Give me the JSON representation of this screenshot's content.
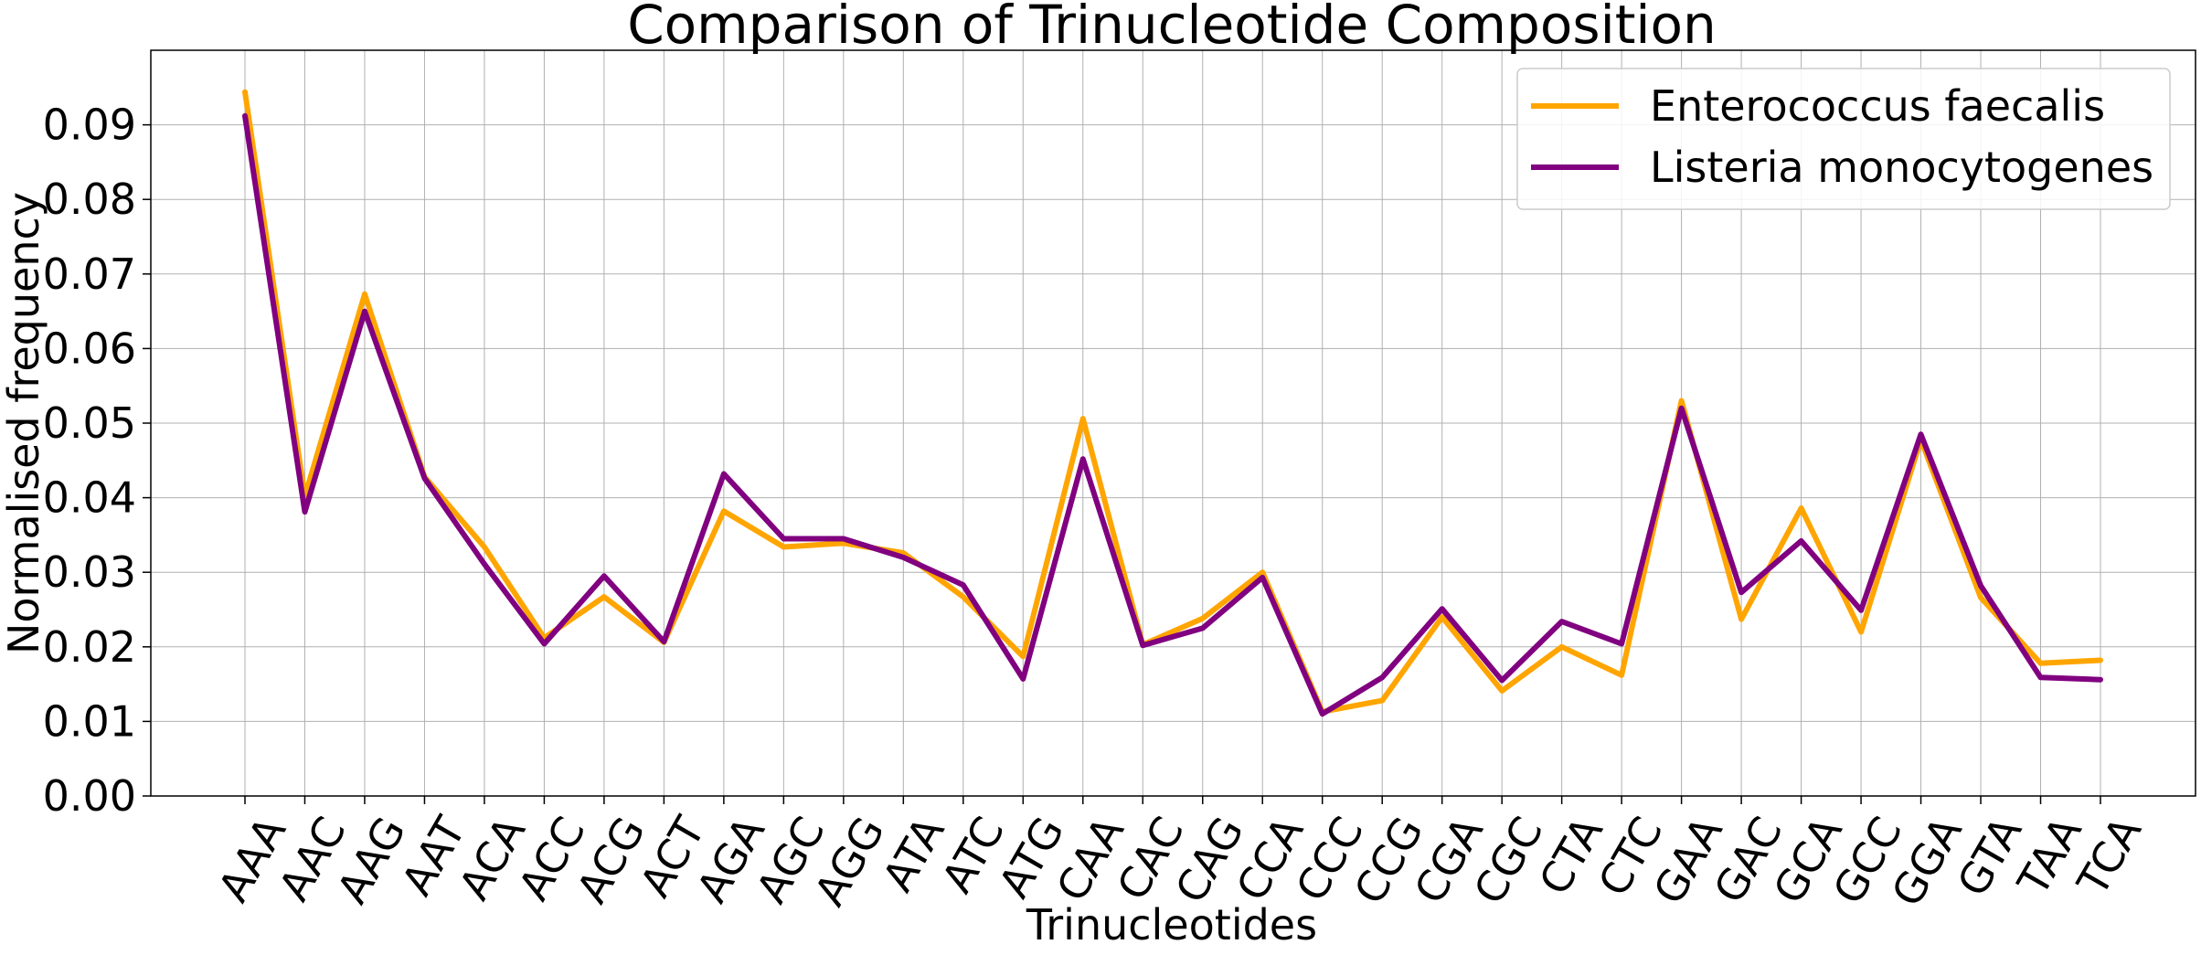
{
  "chart_data": {
    "type": "line",
    "title": "Comparison of Trinucleotide Composition",
    "xlabel": "Trinucleotides",
    "ylabel": "Normalised frequency",
    "ylim": [
      0.0,
      0.1
    ],
    "yticks": [
      "0.00",
      "0.01",
      "0.02",
      "0.03",
      "0.04",
      "0.05",
      "0.06",
      "0.07",
      "0.08",
      "0.09"
    ],
    "grid": true,
    "legend_position": "top-right",
    "categories": [
      "AAA",
      "AAC",
      "AAG",
      "AAT",
      "ACA",
      "ACC",
      "ACG",
      "ACT",
      "AGA",
      "AGC",
      "AGG",
      "ATA",
      "ATC",
      "ATG",
      "CAA",
      "CAC",
      "CAG",
      "CCA",
      "CCC",
      "CCG",
      "CGA",
      "CGC",
      "CTA",
      "CTC",
      "GAA",
      "GAC",
      "GCA",
      "GCC",
      "GGA",
      "GTA",
      "TAA",
      "TCA"
    ],
    "series": [
      {
        "name": "Enterococcus faecalis",
        "color": "#ffa500",
        "values": [
          0.0944,
          0.0402,
          0.0673,
          0.0428,
          0.0334,
          0.0212,
          0.0267,
          0.0206,
          0.0382,
          0.0334,
          0.0339,
          0.0326,
          0.0267,
          0.0187,
          0.0506,
          0.0203,
          0.0238,
          0.03,
          0.0113,
          0.0128,
          0.024,
          0.0141,
          0.02,
          0.0162,
          0.053,
          0.0237,
          0.0386,
          0.022,
          0.0478,
          0.0266,
          0.0178,
          0.0182
        ]
      },
      {
        "name": "Listeria monocytogenes",
        "color": "#800080",
        "values": [
          0.0912,
          0.0381,
          0.065,
          0.0426,
          0.0311,
          0.0204,
          0.0295,
          0.0207,
          0.0432,
          0.0345,
          0.0345,
          0.032,
          0.0283,
          0.0157,
          0.0452,
          0.0202,
          0.0225,
          0.0293,
          0.011,
          0.0159,
          0.0251,
          0.0155,
          0.0234,
          0.0204,
          0.052,
          0.0273,
          0.0342,
          0.0249,
          0.0485,
          0.0282,
          0.0159,
          0.0156
        ]
      }
    ]
  }
}
